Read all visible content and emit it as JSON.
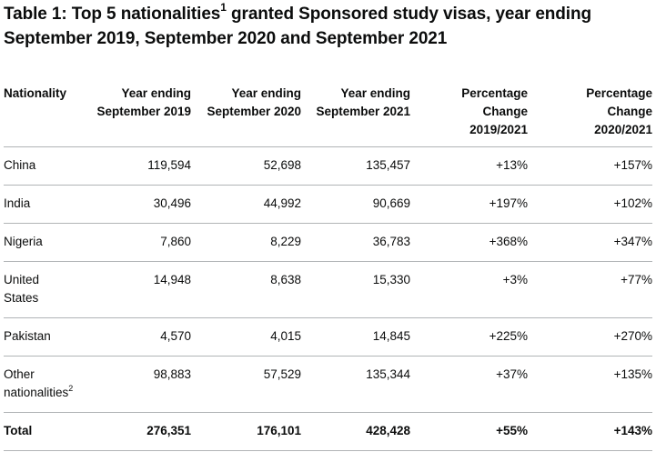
{
  "caption": {
    "text": "Table 1: Top 5 nationalities",
    "sup": "1",
    "text_rest": " granted Sponsored study visas, year ending September 2019, September 2020 and September 2021"
  },
  "table": {
    "headers": [
      [
        "Nationality"
      ],
      [
        "Year ending",
        "September 2019"
      ],
      [
        "Year ending",
        "September 2020"
      ],
      [
        "Year ending",
        "September 2021"
      ],
      [
        "Percentage",
        "Change",
        "2019/2021"
      ],
      [
        "Percentage",
        "Change",
        "2020/2021"
      ]
    ],
    "rows": [
      {
        "nationality": [
          "China"
        ],
        "sup": "",
        "y2019": "119,594",
        "y2020": "52,698",
        "y2021": "135,457",
        "pct1921": "+13%",
        "pct2021": "+157%"
      },
      {
        "nationality": [
          "India"
        ],
        "sup": "",
        "y2019": "30,496",
        "y2020": "44,992",
        "y2021": "90,669",
        "pct1921": "+197%",
        "pct2021": "+102%"
      },
      {
        "nationality": [
          "Nigeria"
        ],
        "sup": "",
        "y2019": "7,860",
        "y2020": "8,229",
        "y2021": "36,783",
        "pct1921": "+368%",
        "pct2021": "+347%"
      },
      {
        "nationality": [
          "United",
          "States"
        ],
        "sup": "",
        "y2019": "14,948",
        "y2020": "8,638",
        "y2021": "15,330",
        "pct1921": "+3%",
        "pct2021": "+77%"
      },
      {
        "nationality": [
          "Pakistan"
        ],
        "sup": "",
        "y2019": "4,570",
        "y2020": "4,015",
        "y2021": "14,845",
        "pct1921": "+225%",
        "pct2021": "+270%"
      },
      {
        "nationality": [
          "Other",
          "nationalities"
        ],
        "sup": "2",
        "y2019": "98,883",
        "y2020": "57,529",
        "y2021": "135,344",
        "pct1921": "+37%",
        "pct2021": "+135%"
      }
    ],
    "total": {
      "label": "Total",
      "y2019": "276,351",
      "y2020": "176,101",
      "y2021": "428,428",
      "pct1921": "+55%",
      "pct2021": "+143%"
    }
  }
}
